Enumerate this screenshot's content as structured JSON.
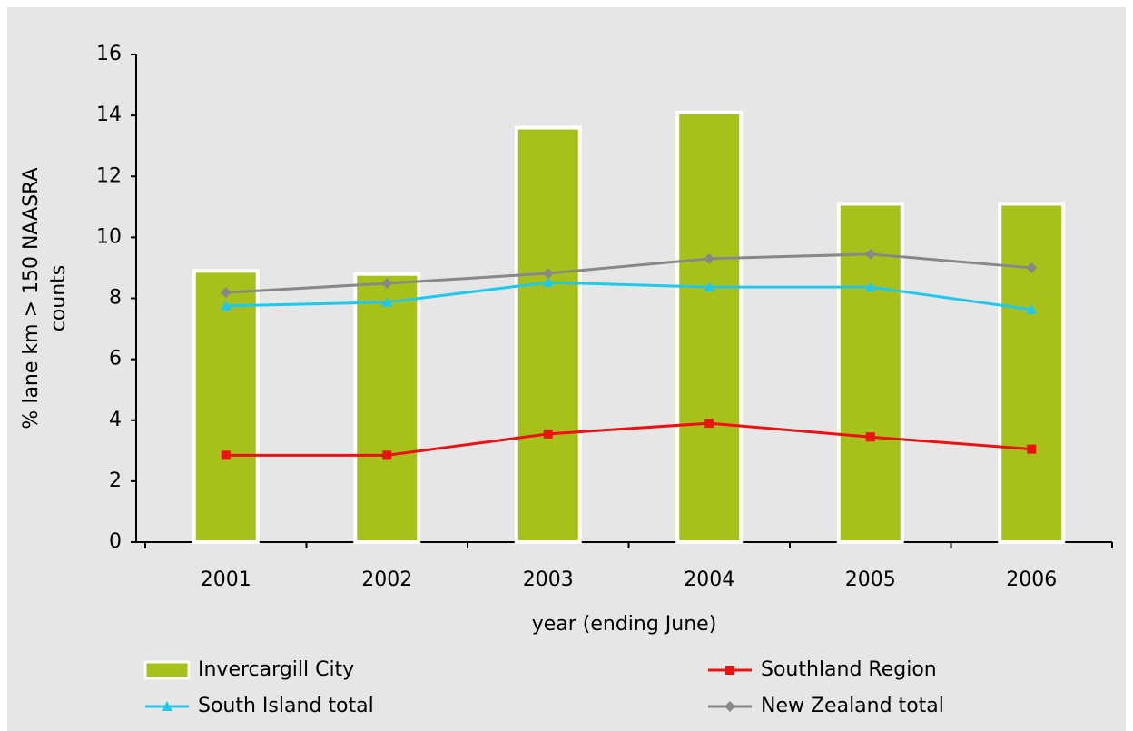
{
  "chart_data": {
    "type": "bar-line",
    "x_label": "year (ending June)",
    "y_label": [
      "% lane km > 150 NAASRA",
      "counts"
    ],
    "categories": [
      "2001",
      "2002",
      "2003",
      "2004",
      "2005",
      "2006"
    ],
    "series": [
      {
        "name": "Invercargill City",
        "type": "bar",
        "color": "#a8c11a",
        "values": [
          8.9,
          8.8,
          13.6,
          14.1,
          11.1,
          11.1
        ]
      },
      {
        "name": "Southland Region",
        "type": "line",
        "marker": "square",
        "color": "#ee1111",
        "values": [
          2.85,
          2.85,
          3.55,
          3.9,
          3.45,
          3.05
        ]
      },
      {
        "name": "South Island total",
        "type": "line",
        "marker": "triangle",
        "color": "#1ec8ee",
        "values": [
          7.75,
          7.87,
          8.52,
          8.37,
          8.37,
          7.63
        ]
      },
      {
        "name": "New Zealand total",
        "type": "line",
        "marker": "diamond",
        "color": "#888888",
        "values": [
          8.19,
          8.49,
          8.82,
          9.3,
          9.45,
          9.0
        ]
      }
    ],
    "ylim": [
      0,
      16
    ],
    "yticks": [
      0,
      2,
      4,
      6,
      8,
      10,
      12,
      14,
      16
    ]
  }
}
